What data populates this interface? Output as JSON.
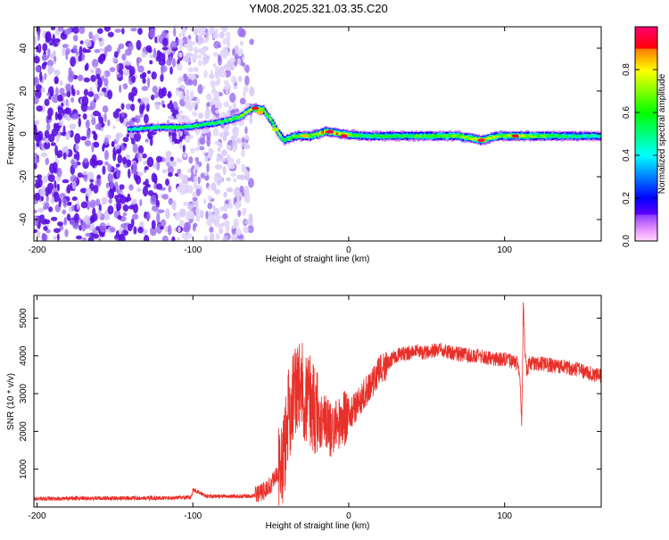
{
  "title": "YM08.2025.321.03.35.C20",
  "colors": {
    "snr_line": "#e8302a",
    "frame": "#000000",
    "background": "#ffffff"
  },
  "chart_data": [
    {
      "type": "heatmap",
      "xlabel": "Height of straight line (km)",
      "ylabel": "Frequency (Hz)",
      "xlim": [
        -202,
        162
      ],
      "ylim": [
        -50,
        50
      ],
      "x_ticks": [
        -200,
        -100,
        0,
        100
      ],
      "y_ticks": [
        -40,
        -20,
        0,
        20,
        40
      ],
      "colorbar": {
        "label": "Normalized spectral amplitude",
        "range": [
          0,
          1
        ],
        "ticks": [
          0.0,
          0.2,
          0.4,
          0.6,
          0.8
        ]
      },
      "noise_region_x": [
        -202,
        -62
      ],
      "ridge": [
        {
          "x": -142,
          "y": 2,
          "a": 0.45
        },
        {
          "x": -125,
          "y": 3,
          "a": 0.55
        },
        {
          "x": -110,
          "y": 3,
          "a": 0.6
        },
        {
          "x": -95,
          "y": 4,
          "a": 0.55
        },
        {
          "x": -80,
          "y": 6,
          "a": 0.6
        },
        {
          "x": -70,
          "y": 8,
          "a": 0.7
        },
        {
          "x": -62,
          "y": 12,
          "a": 0.85
        },
        {
          "x": -55,
          "y": 11,
          "a": 0.7
        },
        {
          "x": -50,
          "y": 6,
          "a": 0.65
        },
        {
          "x": -46,
          "y": 1,
          "a": 0.7
        },
        {
          "x": -42,
          "y": -3,
          "a": 0.6
        },
        {
          "x": -35,
          "y": -1,
          "a": 0.65
        },
        {
          "x": -25,
          "y": -1,
          "a": 0.7
        },
        {
          "x": -15,
          "y": 1,
          "a": 0.85
        },
        {
          "x": -5,
          "y": 0,
          "a": 0.8
        },
        {
          "x": 10,
          "y": -1,
          "a": 0.55
        },
        {
          "x": 40,
          "y": -1,
          "a": 0.6
        },
        {
          "x": 70,
          "y": -1,
          "a": 0.7
        },
        {
          "x": 85,
          "y": -3,
          "a": 0.85
        },
        {
          "x": 95,
          "y": -1,
          "a": 0.7
        },
        {
          "x": 110,
          "y": -1,
          "a": 0.75
        },
        {
          "x": 140,
          "y": -1,
          "a": 0.55
        },
        {
          "x": 162,
          "y": -1,
          "a": 0.45
        }
      ]
    },
    {
      "type": "line",
      "xlabel": "Height of straight line (km)",
      "ylabel": "SNR (10 * v/v)",
      "xlim": [
        -202,
        162
      ],
      "ylim": [
        0,
        5600
      ],
      "x_ticks": [
        -200,
        -100,
        0,
        100
      ],
      "y_ticks": [
        1000,
        2000,
        3000,
        4000,
        5000
      ],
      "series": [
        {
          "name": "SNR",
          "x": [
            -202,
            -180,
            -160,
            -140,
            -120,
            -101,
            -100,
            -90,
            -70,
            -60,
            -55,
            -50,
            -45,
            -42,
            -40,
            -38,
            -35,
            -32,
            -28,
            -25,
            -22,
            -18,
            -15,
            -12,
            -8,
            -5,
            0,
            5,
            10,
            15,
            20,
            25,
            30,
            40,
            50,
            60,
            65,
            70,
            80,
            90,
            100,
            105,
            108,
            110,
            111,
            112,
            113,
            114,
            116,
            120,
            130,
            140,
            150,
            162
          ],
          "values": [
            220,
            220,
            230,
            230,
            240,
            250,
            450,
            280,
            280,
            300,
            400,
            600,
            900,
            1300,
            1800,
            2600,
            3000,
            3200,
            3000,
            2900,
            2600,
            2200,
            2400,
            2000,
            2200,
            2300,
            2400,
            2700,
            3000,
            3300,
            3600,
            3800,
            4000,
            4100,
            4100,
            4150,
            4100,
            4050,
            4000,
            3950,
            3900,
            3850,
            3800,
            3300,
            2200,
            5400,
            4200,
            3600,
            3800,
            3800,
            3750,
            3700,
            3600,
            3450
          ]
        }
      ]
    }
  ]
}
